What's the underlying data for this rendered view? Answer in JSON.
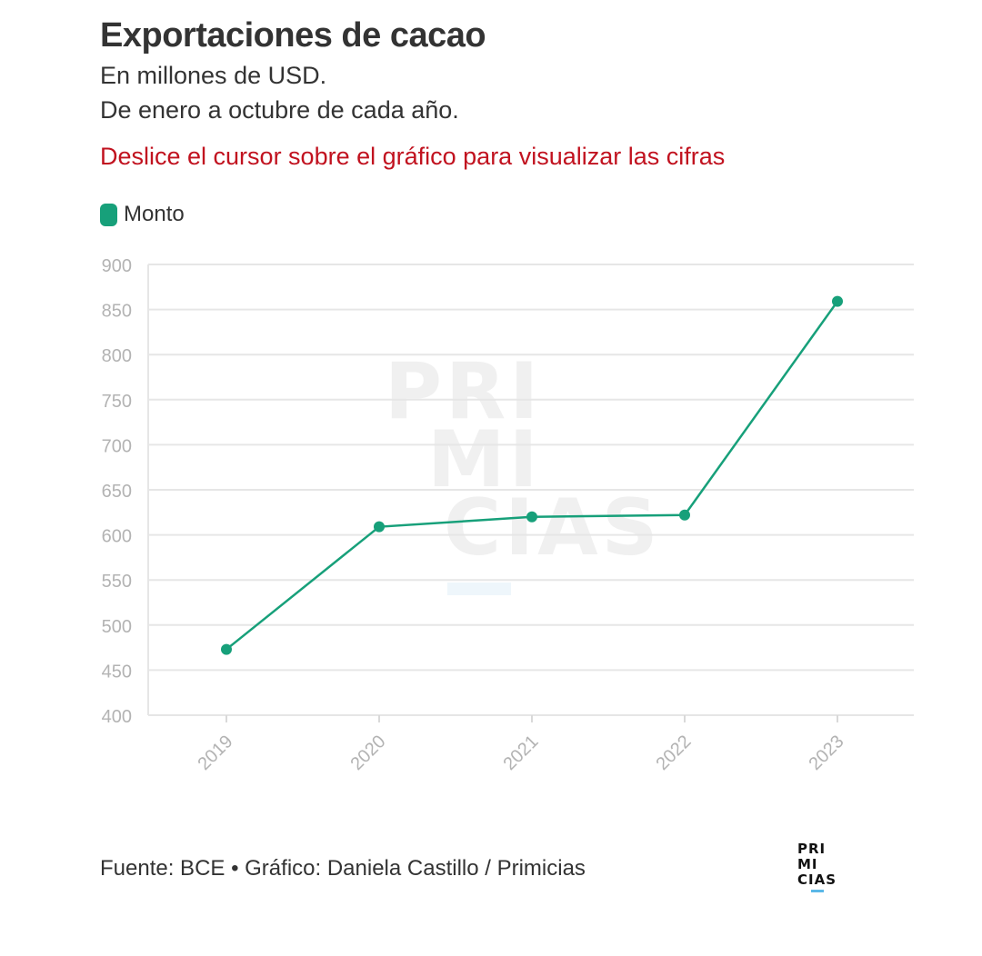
{
  "header": {
    "title": "Exportaciones de cacao",
    "subtitle_line1": "En millones de USD.",
    "subtitle_line2": "De enero a octubre de cada año.",
    "hint": "Deslice el cursor sobre el gráfico para visualizar las cifras"
  },
  "legend": {
    "label": "Monto",
    "color": "#17a07a"
  },
  "watermark": {
    "line1": "PRI",
    "line2": "MI",
    "line3": "CIAS"
  },
  "footer": {
    "source": "Fuente: BCE • Gráfico: Daniela Castillo / Primicias"
  },
  "logo": {
    "line1": "PRI",
    "line2": "MI",
    "line3": "CIAS"
  },
  "chart_data": {
    "type": "line",
    "x": [
      "2019",
      "2020",
      "2021",
      "2022",
      "2023"
    ],
    "series": [
      {
        "name": "Monto",
        "values": [
          473,
          609,
          620,
          622,
          859
        ],
        "color": "#17a07a"
      }
    ],
    "ylim": [
      400,
      900
    ],
    "yticks": [
      400,
      450,
      500,
      550,
      600,
      650,
      700,
      750,
      800,
      850,
      900
    ],
    "grid": true,
    "legend_position": "top-left"
  }
}
